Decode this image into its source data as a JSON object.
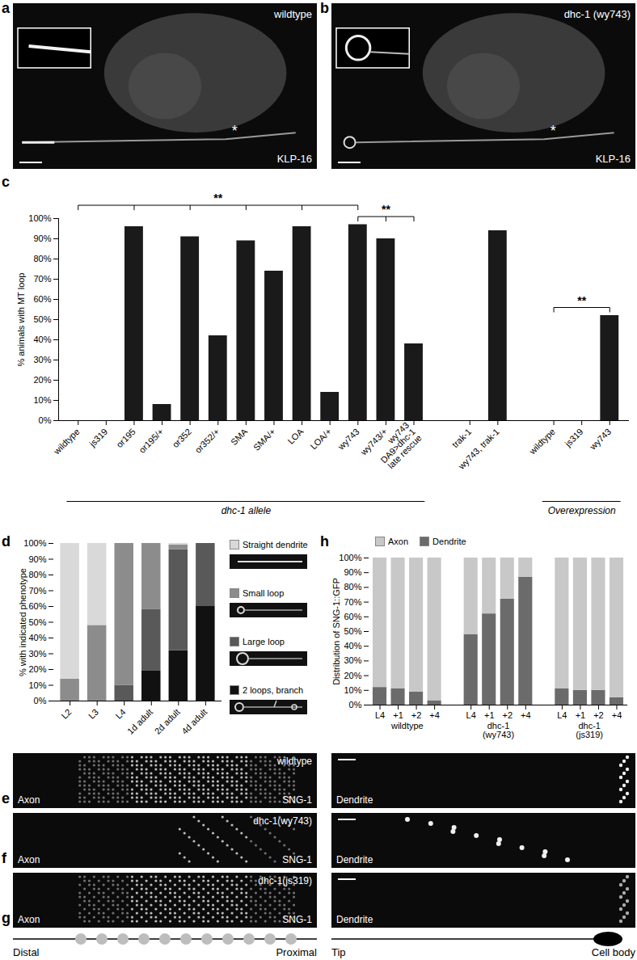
{
  "images": [
    {
      "panel": "a",
      "label": "wildtype",
      "stain": "KLP-16",
      "annotation": "*"
    },
    {
      "panel": "b",
      "label": "dhc-1 (wy743)",
      "stain": "KLP-16",
      "annotation": "*"
    },
    {
      "panel": "e",
      "label": "wildtype",
      "stain": "SNG-1",
      "axon": "Axon",
      "dendrite": "Dendrite"
    },
    {
      "panel": "f",
      "label": "dhc-1(wy743)",
      "stain": "SNG-1",
      "axon": "Axon",
      "dendrite": "Dendrite"
    },
    {
      "panel": "g",
      "label": "dhc-1(js319)",
      "stain": "SNG-1",
      "axon": "Axon",
      "dendrite": "Dendrite"
    }
  ],
  "schematic": {
    "axon": [
      "Distal",
      "Proximal"
    ],
    "dendrite": [
      "Tip",
      "Cell body"
    ]
  },
  "chart_data": [
    {
      "panel": "c",
      "type": "bar",
      "color": "#1a1a1a",
      "categories": [
        "wildtype",
        "js319",
        "or195",
        "or195/+",
        "or352",
        "or352/+",
        "SMA",
        "SMA/+",
        "LOA",
        "LOA/+",
        "wy743",
        "wy743/+",
        "wy743\nDA9>dhc-1\nlate rescue",
        null,
        "trak-1",
        "wy743, trak-1",
        null,
        "wildtype",
        "js319",
        "wy743"
      ],
      "values": [
        0,
        0,
        96,
        8,
        91,
        42,
        89,
        74,
        96,
        14,
        97,
        90,
        38,
        null,
        0,
        94,
        null,
        0,
        0,
        52
      ],
      "ylabel": "% animals with MT loop",
      "ylim": [
        0,
        100
      ],
      "yticks": [
        {
          "value": 0,
          "label": "0%"
        },
        {
          "value": 10,
          "label": "10%"
        },
        {
          "value": 20,
          "label": "20%"
        },
        {
          "value": 30,
          "label": "30%"
        },
        {
          "value": 40,
          "label": "40%"
        },
        {
          "value": 50,
          "label": "50%"
        },
        {
          "value": 60,
          "label": "60%"
        },
        {
          "value": 70,
          "label": "70%"
        },
        {
          "value": 80,
          "label": "80%"
        },
        {
          "value": 90,
          "label": "90%"
        },
        {
          "value": 100,
          "label": "100%"
        }
      ],
      "significance": [
        {
          "label": "**",
          "from": 0,
          "to": [
            2,
            4,
            6,
            8,
            10
          ]
        },
        {
          "label": "**",
          "from": 12,
          "to": [
            10,
            11
          ]
        },
        {
          "label": "**",
          "from": 17,
          "to": [
            19
          ]
        }
      ],
      "groups": [
        {
          "label": "dhc-1 allele",
          "from": 0,
          "to": 12
        },
        {
          "label": "Overexpression",
          "from": 17,
          "to": 19
        }
      ]
    },
    {
      "panel": "d",
      "type": "bar",
      "stacked": true,
      "legend": "right",
      "categories": [
        "L2",
        "L3",
        "L4",
        "1d adult",
        "2d adult",
        "4d adult"
      ],
      "series": [
        {
          "name": "Straight dendrite",
          "color": "#d9d9d9",
          "values": [
            86,
            52,
            0,
            0,
            1,
            0
          ]
        },
        {
          "name": "Small loop",
          "color": "#8c8c8c",
          "values": [
            14,
            48,
            90,
            42,
            3,
            0
          ]
        },
        {
          "name": "Large loop",
          "color": "#595959",
          "values": [
            0,
            0,
            10,
            39,
            64,
            40
          ]
        },
        {
          "name": "2 loops, branch",
          "color": "#111111",
          "values": [
            0,
            0,
            0,
            19,
            32,
            60
          ]
        }
      ],
      "ylabel": "% with indicated phenotype",
      "ylim": [
        0,
        100
      ],
      "yticks": [
        {
          "value": 0,
          "label": "0%"
        },
        {
          "value": 10,
          "label": "10%"
        },
        {
          "value": 20,
          "label": "20%"
        },
        {
          "value": 30,
          "label": "30%"
        },
        {
          "value": 40,
          "label": "40%"
        },
        {
          "value": 50,
          "label": "50%"
        },
        {
          "value": 60,
          "label": "60%"
        },
        {
          "value": 70,
          "label": "70%"
        },
        {
          "value": 80,
          "label": "80%"
        },
        {
          "value": 90,
          "label": "90%"
        },
        {
          "value": 100,
          "label": "100%"
        }
      ]
    },
    {
      "panel": "h",
      "type": "bar",
      "stacked": true,
      "legend": "top-left",
      "categories": [
        "L4",
        "+1",
        "+2",
        "+4",
        null,
        "L4",
        "+1",
        "+2",
        "+4",
        null,
        "L4",
        "+1",
        "+2",
        "+4"
      ],
      "series": [
        {
          "name": "Axon",
          "color": "#c8c8c8",
          "values": [
            88,
            89,
            91,
            97,
            null,
            52,
            38,
            28,
            13,
            null,
            89,
            90,
            90,
            95
          ]
        },
        {
          "name": "Dendrite",
          "color": "#6b6b6b",
          "values": [
            12,
            11,
            9,
            3,
            null,
            48,
            62,
            72,
            87,
            null,
            11,
            10,
            10,
            5
          ]
        }
      ],
      "groups": [
        {
          "label": "wildtype",
          "from": 0,
          "to": 3
        },
        {
          "label": "dhc-1\n(wy743)",
          "from": 5,
          "to": 8
        },
        {
          "label": "dhc-1\n(js319)",
          "from": 10,
          "to": 13
        }
      ],
      "ylabel": "Distribution of SNG-1::GFP",
      "ylim": [
        0,
        100
      ],
      "yticks": [
        {
          "value": 0,
          "label": "0%"
        },
        {
          "value": 10,
          "label": "10%"
        },
        {
          "value": 20,
          "label": "20%"
        },
        {
          "value": 30,
          "label": "30%"
        },
        {
          "value": 40,
          "label": "40%"
        },
        {
          "value": 50,
          "label": "50%"
        },
        {
          "value": 60,
          "label": "60%"
        },
        {
          "value": 70,
          "label": "70%"
        },
        {
          "value": 80,
          "label": "80%"
        },
        {
          "value": 90,
          "label": "90%"
        },
        {
          "value": 100,
          "label": "100%"
        }
      ]
    }
  ]
}
